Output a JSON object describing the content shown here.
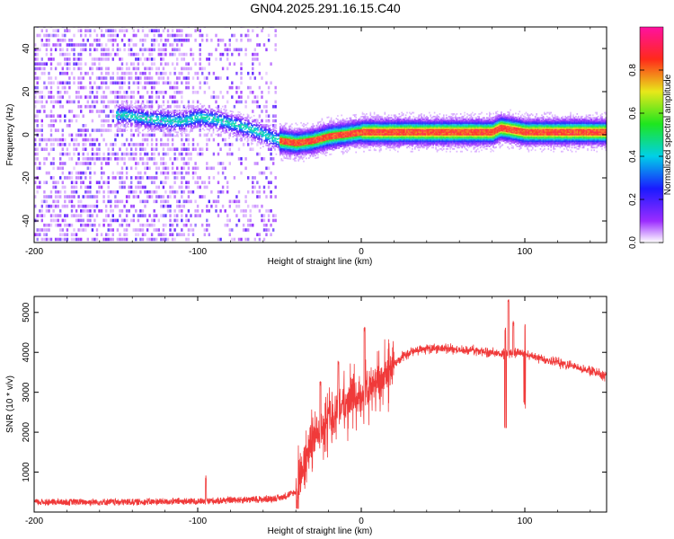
{
  "chart_data": [
    {
      "type": "heatmap",
      "title": "GN04.2025.291.16.15.C40",
      "xlabel": "Height of straight line (km)",
      "ylabel": "Frequency (Hz)",
      "xlim": [
        -200,
        150
      ],
      "ylim": [
        -50,
        50
      ],
      "xticks": [
        -200,
        -100,
        0,
        100
      ],
      "yticks": [
        -40,
        -20,
        0,
        20,
        40
      ],
      "colorbar": {
        "label": "Normalized spectral amplitude",
        "range": [
          0,
          1
        ],
        "ticks": [
          "0.0",
          "0.2",
          "0.4",
          "0.6",
          "0.8"
        ]
      },
      "ridge": {
        "note": "dominant frequency ridge (Hz) vs height (km)",
        "x": [
          -145,
          -130,
          -110,
          -100,
          -90,
          -80,
          -70,
          -60,
          -50,
          -40,
          -30,
          -20,
          -10,
          0,
          10,
          20,
          40,
          60,
          80,
          85,
          100,
          120,
          150
        ],
        "y": [
          9,
          7,
          6,
          8,
          7,
          5,
          3,
          0,
          -3,
          -4,
          -3,
          -1,
          0,
          1,
          1,
          1,
          1,
          1,
          1,
          3,
          1,
          1,
          1
        ]
      }
    },
    {
      "type": "line",
      "xlabel": "Height of straight line (km)",
      "ylabel": "SNR (10 * v/v)",
      "xlim": [
        -200,
        150
      ],
      "ylim": [
        0,
        5400
      ],
      "xticks": [
        -200,
        -100,
        0,
        100
      ],
      "yticks": [
        1000,
        2000,
        3000,
        4000,
        5000
      ],
      "color": "#f03a3a",
      "series": [
        {
          "name": "SNR",
          "x": [
            -200,
            -150,
            -120,
            -100,
            -90,
            -80,
            -70,
            -60,
            -50,
            -40,
            -35,
            -30,
            -25,
            -20,
            -15,
            -10,
            -5,
            0,
            5,
            10,
            15,
            20,
            25,
            30,
            35,
            40,
            50,
            60,
            70,
            80,
            85,
            90,
            95,
            100,
            110,
            120,
            130,
            140,
            150
          ],
          "y": [
            250,
            250,
            260,
            270,
            280,
            300,
            310,
            320,
            350,
            500,
            1100,
            1800,
            2100,
            2300,
            2500,
            2700,
            2800,
            2900,
            3000,
            3200,
            3450,
            3700,
            3900,
            4000,
            4050,
            4100,
            4100,
            4050,
            4050,
            4000,
            3950,
            3950,
            4000,
            3950,
            3850,
            3750,
            3650,
            3550,
            3400
          ]
        }
      ],
      "spikes": {
        "note": "isolated peaks",
        "x": [
          -95,
          -25,
          -14,
          2,
          88,
          90,
          93,
          100
        ],
        "y": [
          950,
          3300,
          3800,
          4650,
          4650,
          5400,
          4800,
          4700
        ]
      }
    }
  ]
}
